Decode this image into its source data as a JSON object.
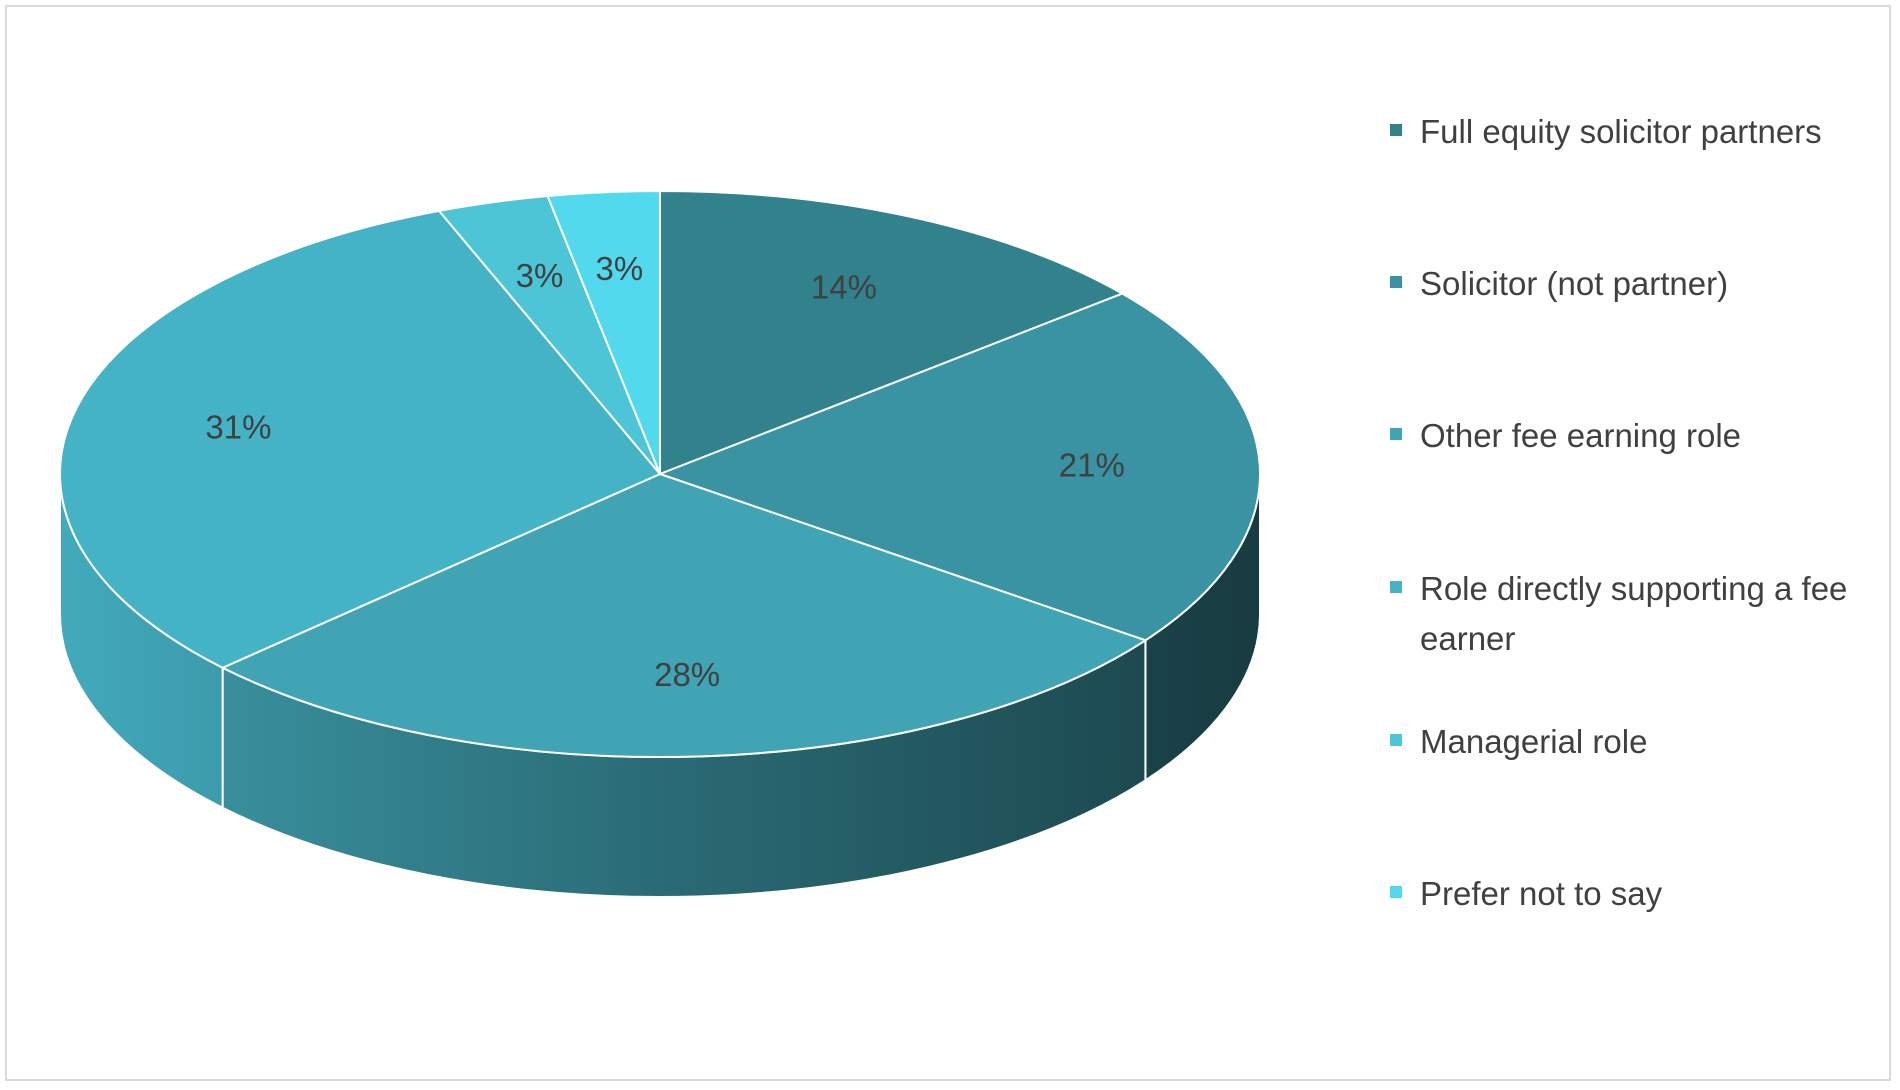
{
  "chart_data": {
    "type": "pie3d",
    "categories": [
      "Full equity solicitor partners",
      "Solicitor (not partner)",
      "Other fee earning role",
      "Role directly supporting a fee earner",
      "Managerial role",
      "Prefer not to say"
    ],
    "values": [
      14,
      21,
      28,
      31,
      3,
      3
    ],
    "value_labels": [
      "14%",
      "21%",
      "28%",
      "31%",
      "3%",
      "3%"
    ],
    "colors": [
      "#31828c",
      "#3993a2",
      "#40a4b4",
      "#45b3c6",
      "#4cc5d6",
      "#52d9ee"
    ],
    "legend": "right"
  }
}
